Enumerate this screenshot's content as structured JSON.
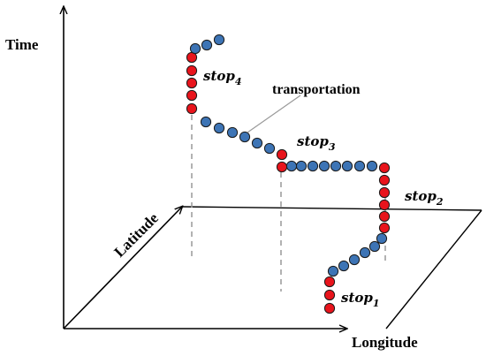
{
  "axes": {
    "time": "Time",
    "latitude": "Latitude",
    "longitude": "Longitude"
  },
  "annotation": "transportation",
  "stops": [
    {
      "base": "stop",
      "sub": "1"
    },
    {
      "base": "stop",
      "sub": "2"
    },
    {
      "base": "stop",
      "sub": "3"
    },
    {
      "base": "stop",
      "sub": "4"
    }
  ],
  "colors": {
    "stop_point": "#e8141c",
    "move_point": "#3d74b5",
    "point_outline": "#1a1a1a",
    "axis": "#000000",
    "projection": "#999999"
  }
}
